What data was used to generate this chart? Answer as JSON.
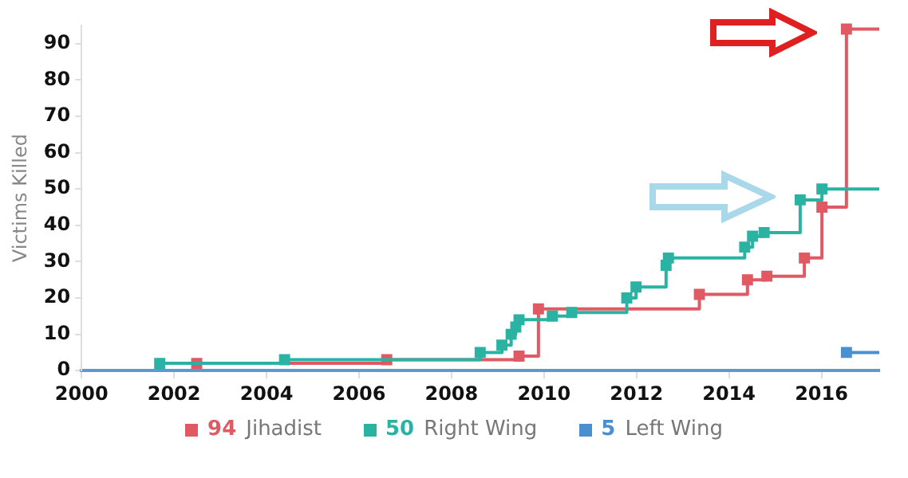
{
  "chart_data": {
    "type": "step",
    "ylabel": "Victims Killed",
    "xlim": [
      2000,
      2017.25
    ],
    "xticks": [
      2000,
      2002,
      2004,
      2006,
      2008,
      2010,
      2012,
      2014,
      2016
    ],
    "ylim": [
      0,
      95
    ],
    "yticks": [
      0,
      10,
      20,
      30,
      40,
      50,
      60,
      70,
      80,
      90
    ],
    "grid": false,
    "legend": "bottom",
    "marker": "square",
    "line_style": "solid",
    "annotations": [
      "94",
      "50",
      "5"
    ],
    "series": [
      {
        "name": "Jihadist",
        "color": "#e05a63",
        "x": [
          2002.49,
          2006.6,
          2009.46,
          2009.88,
          2013.36,
          2014.4,
          2014.82,
          2015.63,
          2016.01,
          2016.54,
          2017.25
        ],
        "values": [
          2,
          3,
          4,
          17,
          21,
          25,
          26,
          31,
          45,
          94,
          94
        ]
      },
      {
        "name": "Right Wing",
        "color": "#2ab3a3",
        "x": [
          2001.69,
          2004.39,
          2008.62,
          2009.09,
          2009.29,
          2009.39,
          2009.46,
          2010.18,
          2010.6,
          2011.79,
          2011.99,
          2012.64,
          2012.69,
          2014.34,
          2014.51,
          2014.76,
          2015.54,
          2016.01,
          2017.25
        ],
        "values": [
          2,
          3,
          5,
          7,
          10,
          12,
          14,
          15,
          16,
          20,
          23,
          29,
          31,
          34,
          37,
          38,
          47,
          50,
          50
        ]
      },
      {
        "name": "Left Wing",
        "color": "#4a90d0",
        "x": [
          2016.54,
          2017.25
        ],
        "values": [
          5,
          5
        ]
      }
    ]
  }
}
